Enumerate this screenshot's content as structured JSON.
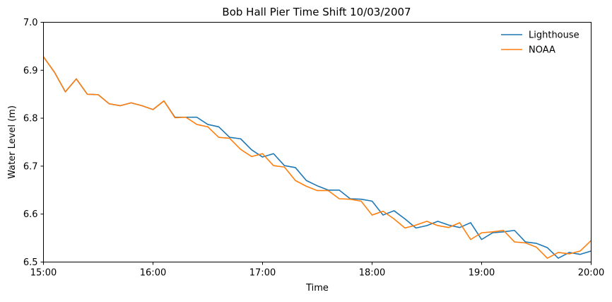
{
  "chart_data": {
    "type": "line",
    "title": "Bob Hall Pier Time Shift 10/03/2007",
    "xlabel": "Time",
    "ylabel": "Water Level (m)",
    "xlim": [
      "15:00",
      "20:00"
    ],
    "ylim": [
      6.5,
      7.0
    ],
    "x_ticks": [
      "15:00",
      "16:00",
      "17:00",
      "18:00",
      "19:00",
      "20:00"
    ],
    "y_ticks": [
      "6.5",
      "6.6",
      "6.7",
      "6.8",
      "6.9",
      "7.0"
    ],
    "grid": false,
    "legend_position": "top-right",
    "x": [
      "15:00",
      "15:06",
      "15:12",
      "15:18",
      "15:24",
      "15:30",
      "15:36",
      "15:42",
      "15:48",
      "15:54",
      "16:00",
      "16:06",
      "16:12",
      "16:18",
      "16:24",
      "16:30",
      "16:36",
      "16:42",
      "16:48",
      "16:54",
      "17:00",
      "17:06",
      "17:12",
      "17:18",
      "17:24",
      "17:30",
      "17:36",
      "17:42",
      "17:48",
      "17:54",
      "18:00",
      "18:06",
      "18:12",
      "18:18",
      "18:24",
      "18:30",
      "18:36",
      "18:42",
      "18:48",
      "18:54",
      "19:00",
      "19:06",
      "19:12",
      "19:18",
      "19:24",
      "19:30",
      "19:36",
      "19:42",
      "19:48",
      "19:54",
      "20:00"
    ],
    "series": [
      {
        "name": "Lighthouse",
        "color": "#1f77b4",
        "values": [
          6.928,
          6.896,
          6.855,
          6.882,
          6.85,
          6.849,
          6.83,
          6.826,
          6.832,
          6.826,
          6.818,
          6.836,
          6.802,
          6.802,
          6.802,
          6.787,
          6.782,
          6.76,
          6.757,
          6.734,
          6.719,
          6.726,
          6.701,
          6.697,
          6.67,
          6.659,
          6.65,
          6.65,
          6.632,
          6.631,
          6.627,
          6.598,
          6.607,
          6.59,
          6.571,
          6.576,
          6.585,
          6.577,
          6.572,
          6.582,
          6.547,
          6.561,
          6.563,
          6.566,
          6.542,
          6.539,
          6.53,
          6.508,
          6.52,
          6.516,
          6.523
        ]
      },
      {
        "name": "NOAA",
        "color": "#ff7f0e",
        "values": [
          6.928,
          6.896,
          6.855,
          6.882,
          6.85,
          6.849,
          6.83,
          6.826,
          6.832,
          6.826,
          6.818,
          6.836,
          6.801,
          6.802,
          6.787,
          6.782,
          6.76,
          6.758,
          6.735,
          6.72,
          6.726,
          6.701,
          6.698,
          6.67,
          6.658,
          6.649,
          6.649,
          6.632,
          6.631,
          6.627,
          6.598,
          6.606,
          6.59,
          6.571,
          6.577,
          6.585,
          6.576,
          6.572,
          6.582,
          6.547,
          6.561,
          6.563,
          6.566,
          6.542,
          6.54,
          6.531,
          6.508,
          6.52,
          6.517,
          6.523,
          6.545
        ]
      }
    ]
  }
}
